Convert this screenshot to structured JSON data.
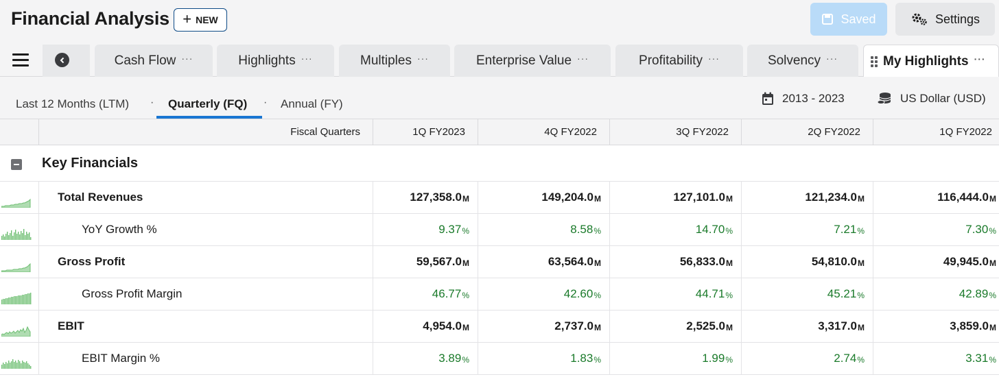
{
  "header": {
    "title": "Financial Analysis",
    "new_label": "NEW",
    "saved_label": "Saved",
    "settings_label": "Settings"
  },
  "tabs": [
    {
      "label": "Cash Flow",
      "more": "···"
    },
    {
      "label": "Highlights",
      "more": "···"
    },
    {
      "label": "Multiples",
      "more": "···"
    },
    {
      "label": "Enterprise Value",
      "more": "···"
    },
    {
      "label": "Profitability",
      "more": "···"
    },
    {
      "label": "Solvency",
      "more": "···"
    },
    {
      "label": "My Highlights",
      "more": "···",
      "active": true
    }
  ],
  "periods": {
    "ltm": "Last 12 Months (LTM)",
    "fq": "Quarterly (FQ)",
    "fy": "Annual (FY)",
    "separator": "·",
    "active": "fq"
  },
  "range": {
    "label": "2013 - 2023"
  },
  "currency": {
    "label": "US Dollar (USD)"
  },
  "table": {
    "first_header": "Fiscal Quarters",
    "columns": [
      "1Q FY2023",
      "4Q FY2022",
      "3Q FY2022",
      "2Q FY2022",
      "1Q FY2022"
    ],
    "section": "Key Financials",
    "rows": [
      {
        "label": "Total Revenues",
        "type": "bold",
        "unit": "M",
        "values": [
          "127,358.0",
          "149,204.0",
          "127,101.0",
          "121,234.0",
          "116,444.0"
        ]
      },
      {
        "label": "YoY Growth %",
        "type": "pct",
        "unit": "%",
        "values": [
          "9.37",
          "8.58",
          "14.70",
          "7.21",
          "7.30"
        ]
      },
      {
        "label": "Gross Profit",
        "type": "bold",
        "unit": "M",
        "values": [
          "59,567.0",
          "63,564.0",
          "56,833.0",
          "54,810.0",
          "49,945.0"
        ]
      },
      {
        "label": "Gross Profit Margin",
        "type": "pct",
        "unit": "%",
        "values": [
          "46.77",
          "42.60",
          "44.71",
          "45.21",
          "42.89"
        ]
      },
      {
        "label": "EBIT",
        "type": "bold",
        "unit": "M",
        "values": [
          "4,954.0",
          "2,737.0",
          "2,525.0",
          "3,317.0",
          "3,859.0"
        ]
      },
      {
        "label": "EBIT Margin %",
        "type": "pct",
        "unit": "%",
        "values": [
          "3.89",
          "1.83",
          "1.99",
          "2.74",
          "3.31"
        ]
      }
    ]
  },
  "colors": {
    "accent": "#1976d2",
    "positive": "#1a7a2a",
    "sparkline": "#6fbf73",
    "saved_bg": "#b9dbf8"
  }
}
